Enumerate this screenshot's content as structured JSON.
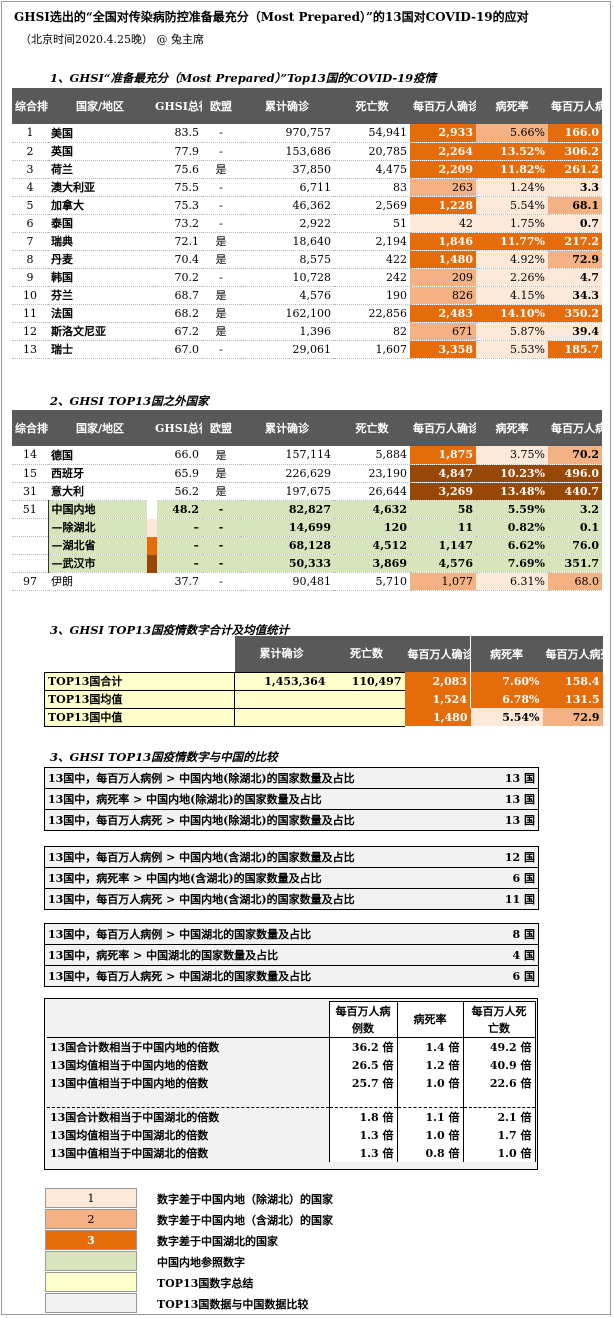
{
  "title": "GHSI选出的“全国对传染病防控准备最充分（Most Prepared）”的13国对COVID-19的应对",
  "subtitle": "（北京时间2020.4.25晚） @ 兔主席",
  "columns": [
    "综合排名",
    "国家/地区",
    "GHSI总得分",
    "欧盟",
    "累计确诊",
    "死亡数",
    "每百万人确诊数",
    "病死率",
    "每百万人病死数"
  ],
  "section1": {
    "title": "1、GHSI“准备最充分（Most Prepared）”Top13国的COVID-19疫情",
    "rows": [
      {
        "rank": "1",
        "country": "美国",
        "score": "83.5",
        "eu": "-",
        "cases": "970,757",
        "deaths": "54,941",
        "ppm": "2,933",
        "cfr": "5.66%",
        "dpm": "166.0",
        "l1": 3,
        "l2": 2,
        "l3": 3
      },
      {
        "rank": "2",
        "country": "英国",
        "score": "77.9",
        "eu": "-",
        "cases": "153,686",
        "deaths": "20,785",
        "ppm": "2,264",
        "cfr": "13.52%",
        "dpm": "306.2",
        "l1": 3,
        "l2": 3,
        "l3": 3
      },
      {
        "rank": "3",
        "country": "荷兰",
        "score": "75.6",
        "eu": "是",
        "cases": "37,850",
        "deaths": "4,475",
        "ppm": "2,209",
        "cfr": "11.82%",
        "dpm": "261.2",
        "l1": 3,
        "l2": 3,
        "l3": 3
      },
      {
        "rank": "4",
        "country": "澳大利亚",
        "score": "75.5",
        "eu": "-",
        "cases": "6,711",
        "deaths": "83",
        "ppm": "263",
        "cfr": "1.24%",
        "dpm": "3.3",
        "l1": 2,
        "l2": 1,
        "l3": 1
      },
      {
        "rank": "5",
        "country": "加拿大",
        "score": "75.3",
        "eu": "-",
        "cases": "46,362",
        "deaths": "2,569",
        "ppm": "1,228",
        "cfr": "5.54%",
        "dpm": "68.1",
        "l1": 3,
        "l2": 1,
        "l3": 2
      },
      {
        "rank": "6",
        "country": "泰国",
        "score": "73.2",
        "eu": "-",
        "cases": "2,922",
        "deaths": "51",
        "ppm": "42",
        "cfr": "1.75%",
        "dpm": "0.7",
        "l1": 1,
        "l2": 1,
        "l3": 1
      },
      {
        "rank": "7",
        "country": "瑞典",
        "score": "72.1",
        "eu": "是",
        "cases": "18,640",
        "deaths": "2,194",
        "ppm": "1,846",
        "cfr": "11.77%",
        "dpm": "217.2",
        "l1": 3,
        "l2": 3,
        "l3": 3
      },
      {
        "rank": "8",
        "country": "丹麦",
        "score": "70.4",
        "eu": "是",
        "cases": "8,575",
        "deaths": "422",
        "ppm": "1,480",
        "cfr": "4.92%",
        "dpm": "72.9",
        "l1": 3,
        "l2": 1,
        "l3": 2
      },
      {
        "rank": "9",
        "country": "韩国",
        "score": "70.2",
        "eu": "-",
        "cases": "10,728",
        "deaths": "242",
        "ppm": "209",
        "cfr": "2.26%",
        "dpm": "4.7",
        "l1": 2,
        "l2": 1,
        "l3": 1
      },
      {
        "rank": "10",
        "country": "芬兰",
        "score": "68.7",
        "eu": "是",
        "cases": "4,576",
        "deaths": "190",
        "ppm": "826",
        "cfr": "4.15%",
        "dpm": "34.3",
        "l1": 2,
        "l2": 1,
        "l3": 1
      },
      {
        "rank": "11",
        "country": "法国",
        "score": "68.2",
        "eu": "是",
        "cases": "162,100",
        "deaths": "22,856",
        "ppm": "2,483",
        "cfr": "14.10%",
        "dpm": "350.2",
        "l1": 3,
        "l2": 3,
        "l3": 3
      },
      {
        "rank": "12",
        "country": "斯洛文尼亚",
        "score": "67.2",
        "eu": "是",
        "cases": "1,396",
        "deaths": "82",
        "ppm": "671",
        "cfr": "5.87%",
        "dpm": "39.4",
        "l1": 2,
        "l2": 1,
        "l3": 1
      },
      {
        "rank": "13",
        "country": "瑞士",
        "score": "67.0",
        "eu": "-",
        "cases": "29,061",
        "deaths": "1,607",
        "ppm": "3,358",
        "cfr": "5.53%",
        "dpm": "185.7",
        "l1": 3,
        "l2": 1,
        "l3": 3
      }
    ]
  },
  "section2": {
    "title": "2、GHSI TOP13国之外国家",
    "rows": [
      {
        "rank": "14",
        "country": "德国",
        "score": "66.0",
        "eu": "是",
        "cases": "157,114",
        "deaths": "5,884",
        "ppm": "1,875",
        "cfr": "3.75%",
        "dpm": "70.2",
        "l1": 3,
        "l2": 1,
        "l3": 2
      },
      {
        "rank": "15",
        "country": "西班牙",
        "score": "65.9",
        "eu": "是",
        "cases": "226,629",
        "deaths": "23,190",
        "ppm": "4,847",
        "cfr": "10.23%",
        "dpm": "496.0",
        "l1": 4,
        "l2": 4,
        "l3": 4
      },
      {
        "rank": "31",
        "country": "意大利",
        "score": "56.2",
        "eu": "是",
        "cases": "197,675",
        "deaths": "26,644",
        "ppm": "3,269",
        "cfr": "13.48%",
        "dpm": "440.7",
        "l1": 4,
        "l2": 4,
        "l3": 4
      }
    ],
    "china": [
      {
        "rank": "51",
        "country": "中国内地",
        "score": "48.2",
        "eu": "-",
        "cases": "82,827",
        "deaths": "4,632",
        "ppm": "58",
        "cfr": "5.59%",
        "dpm": "3.2"
      },
      {
        "rank": "",
        "country": "—除湖北",
        "score": "–",
        "eu": "-",
        "cases": "14,699",
        "deaths": "120",
        "ppm": "11",
        "cfr": "0.82%",
        "dpm": "0.1"
      },
      {
        "rank": "",
        "country": "—湖北省",
        "score": "–",
        "eu": "-",
        "cases": "68,128",
        "deaths": "4,512",
        "ppm": "1,147",
        "cfr": "6.62%",
        "dpm": "76.0"
      },
      {
        "rank": "",
        "country": "—武汉市",
        "score": "–",
        "eu": "-",
        "cases": "50,333",
        "deaths": "3,869",
        "ppm": "4,576",
        "cfr": "7.69%",
        "dpm": "351.7"
      }
    ],
    "iran": {
      "rank": "97",
      "country": "伊朗",
      "score": "37.7",
      "eu": "-",
      "cases": "90,481",
      "deaths": "5,710",
      "ppm": "1,077",
      "cfr": "6.31%",
      "dpm": "68.0"
    }
  },
  "section3": {
    "title": "3、GHSI TOP13国疫情数字合计及均值统计",
    "headers": [
      "累计确诊",
      "死亡数",
      "每百万人确诊数",
      "病死率",
      "每百万人病死数"
    ],
    "rows": [
      {
        "label": "TOP13国合计",
        "cases": "1,453,364",
        "deaths": "110,497",
        "ppm": "2,083",
        "cfr": "7.60%",
        "dpm": "158.4"
      },
      {
        "label": "TOP13国均值",
        "cases": "",
        "deaths": "",
        "ppm": "1,524",
        "cfr": "6.78%",
        "dpm": "131.5"
      },
      {
        "label": "TOP13国中值",
        "cases": "",
        "deaths": "",
        "ppm": "1,480",
        "cfr": "5.54%",
        "dpm": "72.9"
      }
    ]
  },
  "section4": {
    "title": "3、GHSI TOP13国疫情数字与中国的比较",
    "group1": [
      {
        "text": "13国中，每百万人病例 > 中国内地(除湖北)的国家数量及占比",
        "value": "13 国"
      },
      {
        "text": "13国中，病死率 > 中国内地(除湖北)的国家数量及占比",
        "value": "13 国"
      },
      {
        "text": "13国中，每百万人病死 > 中国内地(除湖北)的国家数量及占比",
        "value": "13 国"
      }
    ],
    "group2": [
      {
        "text": "13国中，每百万人病例 > 中国内地(含湖北)的国家数量及占比",
        "value": "12 国"
      },
      {
        "text": "13国中，病死率 > 中国内地(含湖北)的国家数量及占比",
        "value": "6 国"
      },
      {
        "text": "13国中，每百万人病死 > 中国内地(含湖北)的国家数量及占比",
        "value": "11 国"
      }
    ],
    "group3": [
      {
        "text": "13国中，每百万人病例 > 中国湖北的国家数量及占比",
        "value": "8 国"
      },
      {
        "text": "13国中，病死率 > 中国湖北的国家数量及占比",
        "value": "4 国"
      },
      {
        "text": "13国中，每百万人病死 > 中国湖北的国家数量及占比",
        "value": "6 国"
      }
    ],
    "ratio_headers": [
      "每百万人病例数",
      "病死率",
      "每百万人死亡数"
    ],
    "ratios1": [
      {
        "label": "13国合计数相当于中国内地的倍数",
        "a": "36.2 倍",
        "b": "1.4 倍",
        "c": "49.2 倍"
      },
      {
        "label": "13国均值相当于中国内地的倍数",
        "a": "26.5 倍",
        "b": "1.2 倍",
        "c": "40.9 倍"
      },
      {
        "label": "13国中值相当于中国内地的倍数",
        "a": "25.7 倍",
        "b": "1.0 倍",
        "c": "22.6 倍"
      }
    ],
    "ratios2": [
      {
        "label": "13国合计数相当于中国湖北的倍数",
        "a": "1.8 倍",
        "b": "1.1 倍",
        "c": "2.1 倍"
      },
      {
        "label": "13国均值相当于中国湖北的倍数",
        "a": "1.3 倍",
        "b": "1.0 倍",
        "c": "1.7 倍"
      },
      {
        "label": "13国中值相当于中国湖北的倍数",
        "a": "1.3 倍",
        "b": "0.8 倍",
        "c": "1.0 倍"
      }
    ]
  },
  "legend": [
    {
      "swatch": "1",
      "text": "数字差于中国内地（除湖北）的国家",
      "color": "#fde9d9"
    },
    {
      "swatch": "2",
      "text": "数字差于中国内地（含湖北）的国家",
      "color": "#f4b183"
    },
    {
      "swatch": "3",
      "text": "数字差于中国湖北的国家",
      "color": "#e46c0a"
    },
    {
      "swatch": "",
      "text": "中国内地参照数字",
      "color": "#d8e4bc"
    },
    {
      "swatch": "",
      "text": "TOP13国数字总结",
      "color": "#ffffcc"
    },
    {
      "swatch": "",
      "text": "TOP13国数据与中国数据比较",
      "color": "#f2f2f2"
    }
  ]
}
